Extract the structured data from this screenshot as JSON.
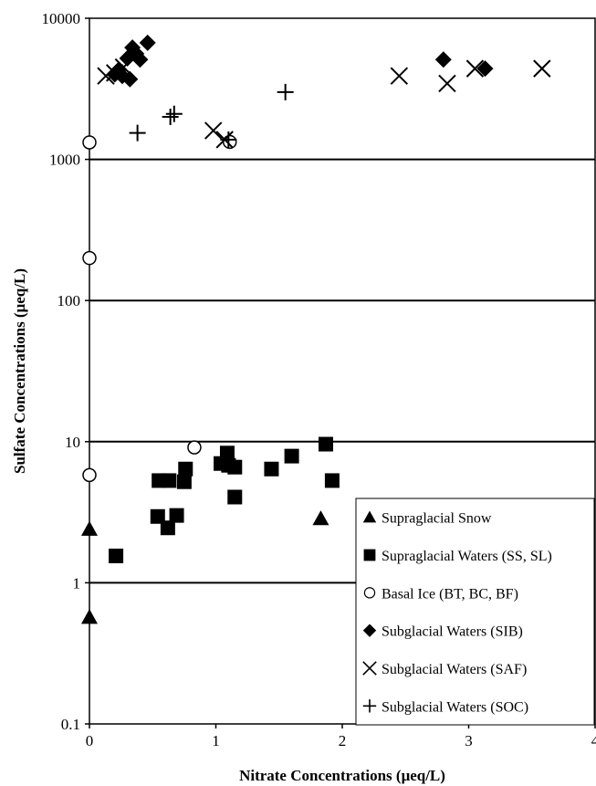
{
  "chart_data": {
    "type": "scatter",
    "title": "",
    "xlabel": "Nitrate Concentrations (μeq/L)",
    "ylabel": "Sulfate Concentrations (μeq/L)",
    "x_scale": "linear",
    "y_scale": "log",
    "xlim": [
      0,
      4
    ],
    "ylim": [
      0.1,
      10000
    ],
    "x_ticks": [
      "0",
      "1",
      "2",
      "3",
      "4"
    ],
    "y_ticks": [
      "0.1",
      "1",
      "10",
      "100",
      "1000",
      "10000"
    ],
    "grid": "horizontal major gridlines at 1, 10, 100, 1000",
    "legend_position": "bottom-right",
    "series": [
      {
        "name": "Supraglacial Snow",
        "marker": "triangle",
        "points": [
          [
            0.0,
            2.4
          ],
          [
            0.0,
            0.57
          ],
          [
            1.83,
            2.85
          ]
        ]
      },
      {
        "name": "Supraglacial Waters (SS, SL)",
        "marker": "square",
        "points": [
          [
            0.21,
            1.55
          ],
          [
            0.54,
            2.95
          ],
          [
            0.55,
            5.3
          ],
          [
            0.62,
            2.45
          ],
          [
            0.63,
            5.3
          ],
          [
            0.69,
            3.0
          ],
          [
            0.75,
            5.2
          ],
          [
            0.76,
            6.4
          ],
          [
            1.04,
            7.0
          ],
          [
            1.09,
            8.3
          ],
          [
            1.1,
            6.8
          ],
          [
            1.15,
            6.6
          ],
          [
            1.15,
            4.05
          ],
          [
            1.44,
            6.4
          ],
          [
            1.6,
            7.9
          ],
          [
            1.87,
            9.6
          ],
          [
            1.92,
            5.3
          ]
        ]
      },
      {
        "name": "Basal Ice (BT, BC, BF)",
        "marker": "circle",
        "points": [
          [
            0.0,
            1320
          ],
          [
            0.0,
            200
          ],
          [
            0.0,
            5.8
          ],
          [
            0.83,
            9.1
          ],
          [
            1.11,
            1330
          ]
        ]
      },
      {
        "name": "Subglacial Waters (SIB)",
        "marker": "diamond",
        "points": [
          [
            0.2,
            4000
          ],
          [
            0.23,
            4300
          ],
          [
            0.26,
            3900
          ],
          [
            0.3,
            5200
          ],
          [
            0.32,
            3700
          ],
          [
            0.34,
            6200
          ],
          [
            0.37,
            5600
          ],
          [
            0.4,
            5100
          ],
          [
            0.46,
            6700
          ],
          [
            2.8,
            5100
          ],
          [
            3.13,
            4400
          ]
        ]
      },
      {
        "name": "Subglacial Waters (SAF)",
        "marker": "x",
        "points": [
          [
            0.13,
            3900
          ],
          [
            0.2,
            4100
          ],
          [
            0.27,
            4500
          ],
          [
            0.98,
            1600
          ],
          [
            1.07,
            1380
          ],
          [
            2.45,
            3900
          ],
          [
            2.83,
            3450
          ],
          [
            3.05,
            4400
          ],
          [
            3.58,
            4400
          ]
        ]
      },
      {
        "name": "Subglacial Waters (SOC)",
        "marker": "plus",
        "points": [
          [
            0.38,
            1540
          ],
          [
            0.64,
            2000
          ],
          [
            0.67,
            2100
          ],
          [
            1.1,
            1380
          ],
          [
            1.55,
            3000
          ]
        ]
      }
    ]
  }
}
